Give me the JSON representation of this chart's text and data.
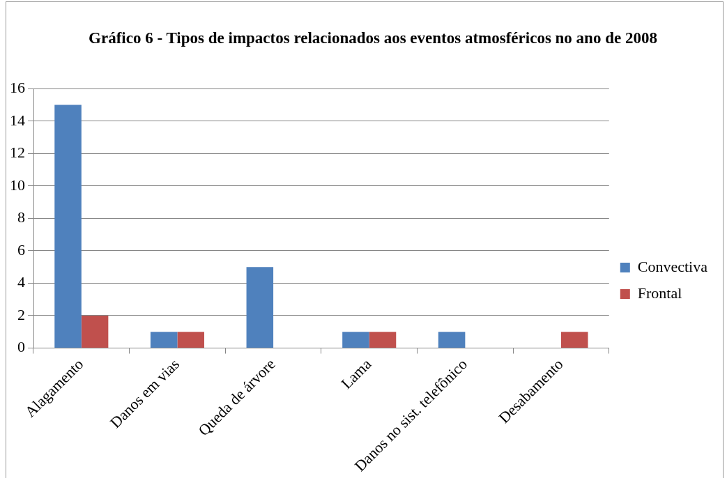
{
  "chart_data": {
    "type": "bar",
    "title": "Gráfico 6 - Tipos de impactos relacionados aos eventos atmosféricos no ano de 2008",
    "categories": [
      "Alagamento",
      "Danos em vias",
      "Queda de árvore",
      "Lama",
      "Danos no sist. telefônico",
      "Desabamento"
    ],
    "series": [
      {
        "name": "Convectiva",
        "color": "#4f81bd",
        "values": [
          15,
          1,
          5,
          1,
          1,
          0
        ]
      },
      {
        "name": "Frontal",
        "color": "#c0504d",
        "values": [
          2,
          1,
          0,
          1,
          0,
          1
        ]
      }
    ],
    "ylim": [
      0,
      16
    ],
    "yticks": [
      0,
      2,
      4,
      6,
      8,
      10,
      12,
      14,
      16
    ],
    "grid": "y",
    "legend": "right"
  }
}
